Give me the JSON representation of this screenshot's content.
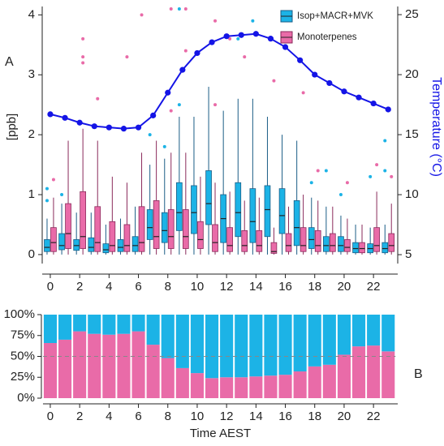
{
  "chart_data": [
    {
      "type": "box",
      "panel_label": "A",
      "ylabel": "[ppb]",
      "y2label": "Temperature (°C)",
      "x": [
        0,
        1,
        2,
        3,
        4,
        5,
        6,
        7,
        8,
        9,
        10,
        11,
        12,
        13,
        14,
        15,
        16,
        17,
        18,
        19,
        20,
        21,
        22,
        23
      ],
      "xlim": [
        -0.55,
        23.65
      ],
      "xticks": [
        0,
        2,
        4,
        6,
        8,
        10,
        12,
        14,
        16,
        18,
        20,
        22
      ],
      "ylim": [
        -0.15,
        4.14
      ],
      "yticks": [
        0,
        1,
        2,
        3,
        4
      ],
      "y2lim": [
        4.26,
        25.68
      ],
      "y2ticks": [
        5,
        10,
        15,
        20,
        25
      ],
      "legend": "upper right",
      "series": [
        {
          "name": "Isop+MACR+MVK",
          "color": "#1cb3e6",
          "edge": "#1b5d86",
          "min": [
            0,
            0,
            0,
            0,
            0,
            0,
            0,
            0,
            0,
            0,
            0,
            0,
            0,
            0,
            0,
            0,
            0,
            0,
            0,
            0,
            0,
            0,
            0,
            0
          ],
          "q1": [
            0.05,
            0.08,
            0.07,
            0.05,
            0.03,
            0.05,
            0.05,
            0.25,
            0.2,
            0.4,
            0.35,
            0.5,
            0.2,
            0.3,
            0.2,
            0.3,
            0.35,
            0.15,
            0.1,
            0.05,
            0.05,
            0.03,
            0.03,
            0.03
          ],
          "median": [
            0.12,
            0.15,
            0.15,
            0.12,
            0.08,
            0.12,
            0.15,
            0.45,
            0.4,
            0.7,
            0.7,
            0.85,
            0.6,
            0.7,
            0.55,
            0.75,
            0.65,
            0.45,
            0.25,
            0.15,
            0.15,
            0.1,
            0.1,
            0.1
          ],
          "q3": [
            0.25,
            0.35,
            0.25,
            0.28,
            0.18,
            0.25,
            0.3,
            0.75,
            0.7,
            1.2,
            1.15,
            1.4,
            1.0,
            1.2,
            1.1,
            1.15,
            1.1,
            0.9,
            0.45,
            0.3,
            0.3,
            0.2,
            0.18,
            0.2
          ],
          "max": [
            0.6,
            0.85,
            0.7,
            0.7,
            0.5,
            0.6,
            0.8,
            1.5,
            1.6,
            2.3,
            2.3,
            2.8,
            2.4,
            2.6,
            2.6,
            2.3,
            2.0,
            1.9,
            0.95,
            0.8,
            0.65,
            0.5,
            0.45,
            0.5
          ],
          "outliers": [
            [
              0.9,
              1.1
            ],
            [
              1.0
            ],
            [],
            [],
            [],
            [],
            [],
            [
              2.0
            ],
            [
              1.8
            ],
            [
              4.1,
              2.5
            ],
            [],
            [],
            [],
            [
              3.6
            ],
            [
              3.9
            ],
            [],
            [],
            [],
            [
              1.2
            ],
            [
              1.4
            ],
            [
              1.0
            ],
            [],
            [
              1.3
            ],
            [
              1.9,
              1.4
            ]
          ]
        },
        {
          "name": "Monoterpenes",
          "color": "#e96ba8",
          "edge": "#8a2a5b",
          "min": [
            0,
            0,
            0,
            0,
            0,
            0,
            0,
            0,
            0,
            0,
            0,
            0,
            0,
            0,
            0,
            0,
            0,
            0,
            0,
            0,
            0,
            0,
            0,
            0
          ],
          "q1": [
            0.05,
            0.1,
            0.1,
            0.05,
            0.05,
            0.05,
            0.05,
            0.1,
            0.1,
            0.1,
            0.1,
            0.05,
            0.05,
            0.05,
            0.05,
            0.02,
            0.05,
            0.05,
            0.05,
            0.05,
            0.05,
            0.03,
            0.05,
            0.05
          ],
          "median": [
            0.2,
            0.35,
            0.3,
            0.2,
            0.15,
            0.15,
            0.2,
            0.3,
            0.3,
            0.3,
            0.25,
            0.2,
            0.15,
            0.15,
            0.15,
            0.05,
            0.15,
            0.15,
            0.15,
            0.15,
            0.12,
            0.1,
            0.15,
            0.15
          ],
          "q3": [
            0.45,
            0.85,
            1.05,
            0.8,
            0.55,
            0.5,
            0.8,
            0.9,
            0.75,
            0.75,
            0.55,
            0.5,
            0.45,
            0.4,
            0.4,
            0.2,
            0.35,
            0.45,
            0.4,
            0.35,
            0.25,
            0.2,
            0.45,
            0.35
          ],
          "max": [
            0.95,
            1.9,
            2.1,
            1.9,
            1.3,
            1.2,
            1.7,
            1.9,
            1.7,
            1.7,
            1.3,
            1.2,
            1.05,
            0.9,
            0.95,
            0.45,
            0.8,
            1.0,
            0.9,
            0.8,
            0.6,
            0.5,
            1.05,
            0.85
          ],
          "outliers": [
            [
              1.25
            ],
            [],
            [
              3.6,
              3.3,
              3.2
            ],
            [
              2.6
            ],
            [],
            [
              3.3
            ],
            [
              4.0
            ],
            [],
            [
              4.1,
              2.4
            ],
            [
              4.1,
              3.4
            ],
            [],
            [
              3.9,
              2.5
            ],
            [
              3.6
            ],
            [
              3.3
            ],
            [],
            [
              2.9
            ],
            [],
            [
              2.7
            ],
            [
              1.4
            ],
            [],
            [
              1.2
            ],
            [],
            [
              1.5
            ],
            [
              1.3
            ]
          ]
        },
        {
          "name": "Temperature",
          "type": "line",
          "axis": "y2",
          "color": "#1414e6",
          "values": [
            16.7,
            16.4,
            16.0,
            15.7,
            15.6,
            15.5,
            15.6,
            16.6,
            18.5,
            20.4,
            21.8,
            22.7,
            23.2,
            23.3,
            23.4,
            23.0,
            22.3,
            21.2,
            20.0,
            19.3,
            18.6,
            18.1,
            17.6,
            17.1
          ]
        }
      ]
    },
    {
      "type": "stacked_bar",
      "panel_label": "B",
      "xlabel": "Time AEST",
      "x": [
        0,
        1,
        2,
        3,
        4,
        5,
        6,
        7,
        8,
        9,
        10,
        11,
        12,
        13,
        14,
        15,
        16,
        17,
        18,
        19,
        20,
        21,
        22,
        23
      ],
      "xlim": [
        -0.55,
        23.65
      ],
      "xticks": [
        0,
        2,
        4,
        6,
        8,
        10,
        12,
        14,
        16,
        18,
        20,
        22
      ],
      "ylim": [
        0,
        100
      ],
      "yticks": [
        {
          "value": 0,
          "label": "0%"
        },
        {
          "value": 25,
          "label": "25%"
        },
        {
          "value": 50,
          "label": "50%"
        },
        {
          "value": 75,
          "label": "75%"
        },
        {
          "value": 100,
          "label": "100%"
        }
      ],
      "hline": 50,
      "series": [
        {
          "name": "Monoterpenes",
          "color": "#e96ba8",
          "values": [
            66,
            70,
            80,
            77,
            76,
            77,
            80,
            64,
            48,
            36,
            30,
            24,
            25,
            25,
            26,
            27,
            28,
            32,
            38,
            40,
            52,
            62,
            63,
            56
          ]
        },
        {
          "name": "Isop+MACR+MVK",
          "color": "#1cb3e6",
          "values": [
            34,
            30,
            20,
            23,
            24,
            23,
            20,
            36,
            52,
            64,
            70,
            76,
            75,
            75,
            74,
            73,
            72,
            68,
            62,
            60,
            48,
            38,
            37,
            44
          ]
        }
      ]
    }
  ]
}
